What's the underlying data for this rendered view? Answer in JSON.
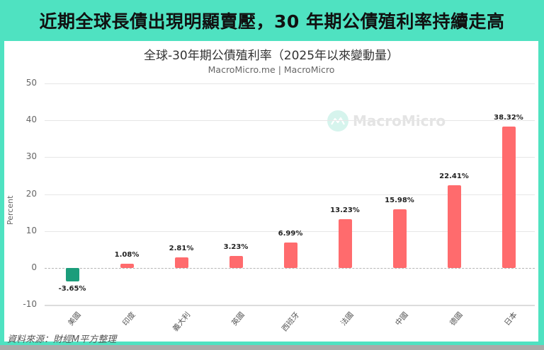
{
  "headline": "近期全球長債出現明顯賣壓，30 年期公債殖利率持續走高",
  "source": "資料來源：財經M平方整理",
  "watermark": "MacroMicro",
  "colors": {
    "background_accent": "#4fe2c1",
    "positive_bar": "#ff6b6d",
    "negative_bar": "#1b9d7b"
  },
  "chart_data": {
    "type": "bar",
    "title": "全球-30年期公債殖利率（2025年以來變動量）",
    "subtitle": "MacroMicro.me | MacroMicro",
    "xlabel": "",
    "ylabel": "Percent",
    "ylim": [
      -10,
      50
    ],
    "yticks": [
      "50",
      "40",
      "30",
      "20",
      "10",
      "0",
      "-10"
    ],
    "grid": true,
    "legend": "none",
    "categories": [
      "美國",
      "印度",
      "義大利",
      "英國",
      "西班牙",
      "法國",
      "中國",
      "德國",
      "日本"
    ],
    "values": [
      -3.65,
      1.08,
      2.81,
      3.23,
      6.99,
      13.23,
      15.98,
      22.41,
      38.32
    ],
    "value_labels": [
      "-3.65%",
      "1.08%",
      "2.81%",
      "3.23%",
      "6.99%",
      "13.23%",
      "15.98%",
      "22.41%",
      "38.32%"
    ]
  }
}
